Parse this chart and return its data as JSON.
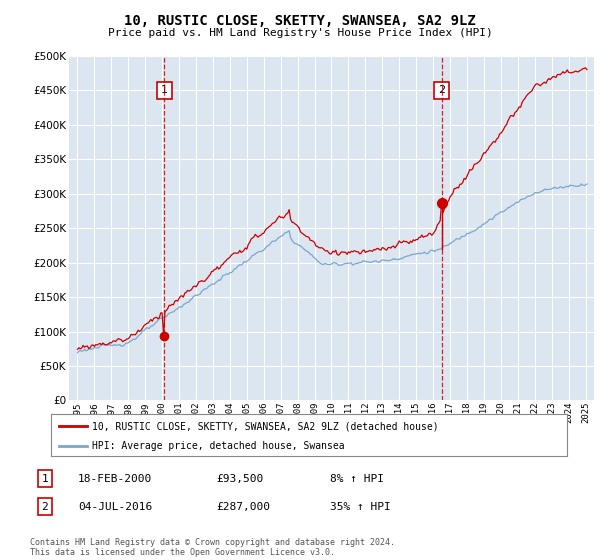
{
  "title": "10, RUSTIC CLOSE, SKETTY, SWANSEA, SA2 9LZ",
  "subtitle": "Price paid vs. HM Land Registry's House Price Index (HPI)",
  "legend_line1": "10, RUSTIC CLOSE, SKETTY, SWANSEA, SA2 9LZ (detached house)",
  "legend_line2": "HPI: Average price, detached house, Swansea",
  "sale1_label": "1",
  "sale1_date": "18-FEB-2000",
  "sale1_price": "£93,500",
  "sale1_hpi": "8% ↑ HPI",
  "sale2_label": "2",
  "sale2_date": "04-JUL-2016",
  "sale2_price": "£287,000",
  "sale2_hpi": "35% ↑ HPI",
  "footer": "Contains HM Land Registry data © Crown copyright and database right 2024.\nThis data is licensed under the Open Government Licence v3.0.",
  "background_color": "#dce6f1",
  "fig_bg_color": "#ffffff",
  "red_color": "#cc0000",
  "blue_color": "#7ba7ca",
  "dashed_color": "#cc0000",
  "sale1_year": 2000.12,
  "sale1_value": 93500,
  "sale2_year": 2016.5,
  "sale2_value": 287000,
  "ylim": [
    0,
    500000
  ],
  "xlim_start": 1994.5,
  "xlim_end": 2025.5
}
